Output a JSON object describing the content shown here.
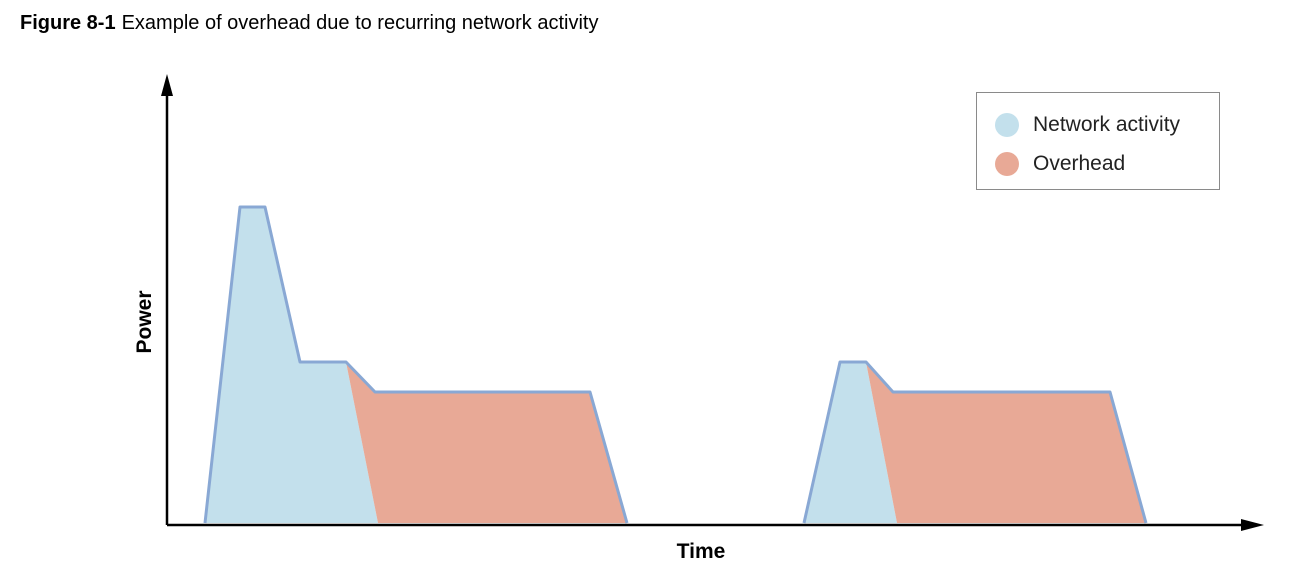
{
  "figure": {
    "number": "Figure 8-1",
    "title": "Example of overhead due to recurring network activity"
  },
  "axes": {
    "x_label": "Time",
    "y_label": "Power"
  },
  "legend": {
    "items": [
      {
        "label": "Network activity",
        "color": "#c3e0ec"
      },
      {
        "label": "Overhead",
        "color": "#e8a996"
      }
    ]
  },
  "colors": {
    "network_fill": "#c3e0ec",
    "overhead_fill": "#e8a996",
    "outline": "#89a8d4",
    "axis": "#000000"
  }
}
